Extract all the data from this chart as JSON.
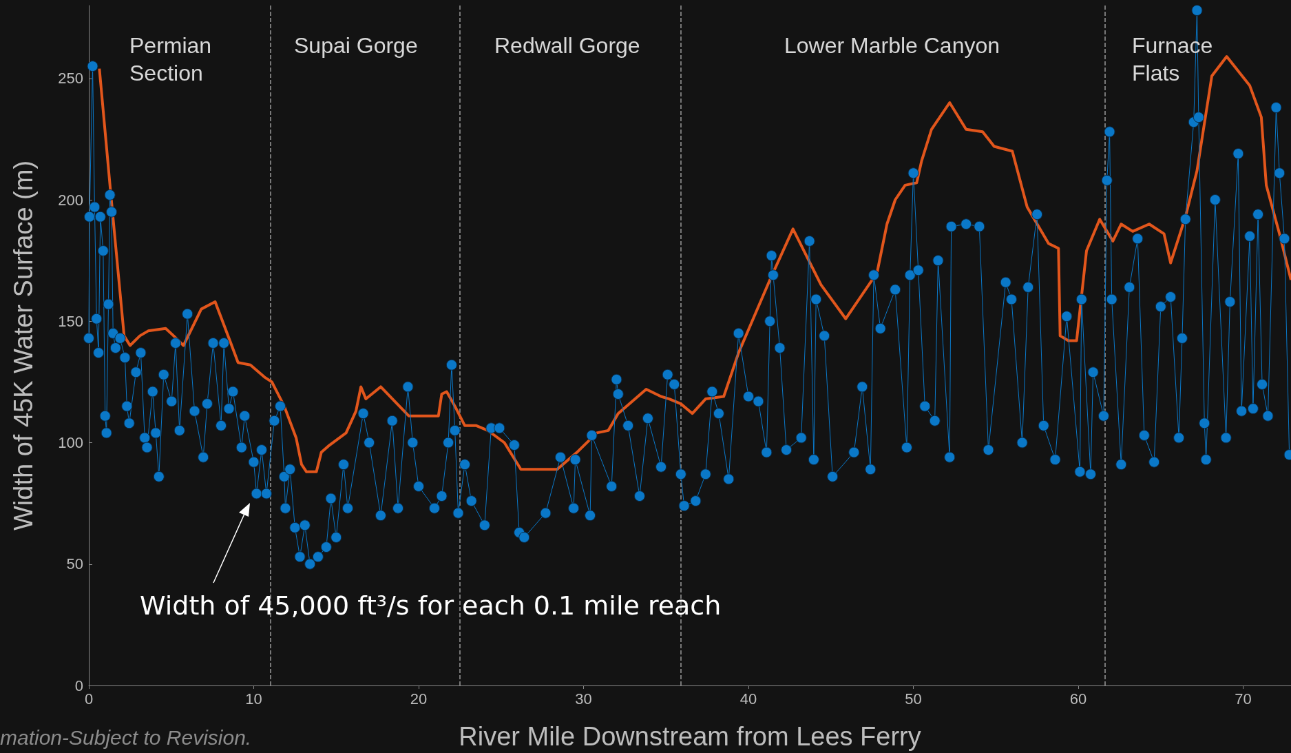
{
  "chart_data": {
    "type": "line",
    "xlabel": "River Mile Downstream from Lees Ferry",
    "ylabel": "Width of 45K Water Surface (m)",
    "xlim": [
      0,
      72.9
    ],
    "ylim": [
      0,
      280
    ],
    "xticks": [
      0,
      10,
      20,
      30,
      40,
      50,
      60,
      70
    ],
    "yticks": [
      0,
      50,
      100,
      150,
      200,
      250
    ],
    "grid": false,
    "series": [
      {
        "color": "#e2561c",
        "marker": "none",
        "x": [
          0.64,
          1.31,
          2.14,
          2.5,
          3.1,
          3.6,
          4.66,
          5.14,
          5.74,
          6.82,
          7.66,
          8.61,
          9.05,
          9.8,
          10.65,
          11.1,
          11.85,
          12.57,
          12.9,
          13.2,
          13.8,
          14.1,
          14.6,
          15.6,
          16.2,
          16.5,
          16.8,
          17.7,
          19.4,
          21.2,
          21.4,
          21.7,
          22.2,
          22.8,
          23.5,
          24.2,
          25.2,
          26.2,
          28.4,
          29.6,
          30.8,
          31.5,
          32.1,
          33.8,
          34.7,
          35.2,
          35.9,
          36.6,
          37.4,
          38.5,
          39.4,
          41.3,
          42.7,
          44.4,
          45.9,
          47.8,
          48.4,
          48.9,
          49.5,
          50.2,
          50.5,
          51.1,
          52.2,
          53.2,
          54.2,
          54.9,
          56,
          56.9,
          58.2,
          58.8,
          58.9,
          59.4,
          59.9,
          60.5,
          61.3,
          62.1,
          62.6,
          63.3,
          64.3,
          65.2,
          65.6,
          66.5,
          67.2,
          68.1,
          69,
          70.4,
          71.1,
          71.4,
          72.2,
          72.9
        ],
        "values": [
          254,
          204,
          144,
          140,
          144,
          146,
          147,
          144,
          140,
          155,
          158,
          141,
          133,
          132,
          127,
          125,
          115,
          102,
          91,
          88,
          88,
          96,
          99,
          104,
          113,
          123,
          118,
          123,
          111,
          111,
          120,
          121,
          115,
          107,
          107,
          105,
          100,
          89,
          89,
          96,
          104,
          105,
          112,
          122,
          119,
          118,
          116,
          112,
          118,
          119,
          137,
          167,
          188,
          165,
          151,
          170,
          190,
          200,
          206,
          207,
          216,
          229,
          240,
          229,
          228,
          222,
          220,
          197,
          182,
          180,
          144,
          142,
          142,
          179,
          192,
          183,
          190,
          187,
          190,
          186,
          174,
          193,
          212,
          251,
          259,
          247,
          234,
          206,
          186,
          167
        ]
      },
      {
        "color": "#0a78c8",
        "marker": "circle",
        "x": [
          0,
          0.04,
          0.23,
          0.35,
          0.47,
          0.59,
          0.7,
          0.87,
          0.99,
          1.07,
          1.19,
          1.28,
          1.38,
          1.47,
          1.62,
          1.9,
          2.19,
          2.31,
          2.45,
          2.86,
          3.15,
          3.39,
          3.53,
          3.87,
          4.06,
          4.25,
          4.54,
          5.02,
          5.26,
          5.5,
          5.98,
          6.41,
          6.94,
          7.18,
          7.54,
          8.02,
          8.19,
          8.5,
          8.74,
          9.26,
          9.45,
          10,
          10.17,
          10.48,
          10.77,
          11.25,
          11.61,
          11.85,
          11.92,
          12.2,
          12.5,
          12.8,
          13.1,
          13.41,
          13.9,
          14.4,
          14.68,
          15,
          15.45,
          15.7,
          16.64,
          17,
          17.7,
          18.4,
          18.75,
          19.35,
          19.64,
          20,
          20.96,
          21.4,
          21.8,
          22,
          22.2,
          22.4,
          22.8,
          23.2,
          24,
          24.4,
          24.9,
          25.8,
          26.1,
          26.4,
          27.7,
          28.6,
          29.4,
          29.5,
          30.4,
          30.5,
          31.7,
          32,
          32.1,
          32.7,
          33.4,
          33.9,
          34.7,
          35.1,
          35.5,
          35.9,
          36.1,
          36.8,
          37.4,
          37.8,
          38.2,
          38.8,
          39.4,
          40,
          40.6,
          41.1,
          41.3,
          41.4,
          41.5,
          41.9,
          42.3,
          43.2,
          43.7,
          43.96,
          44.1,
          44.6,
          45.1,
          46.4,
          46.9,
          47.4,
          47.6,
          48,
          48.9,
          49.6,
          49.8,
          50,
          50.3,
          50.7,
          51.3,
          51.5,
          52.2,
          52.3,
          53.2,
          54,
          54.55,
          55.6,
          55.95,
          56.6,
          56.96,
          57.5,
          57.9,
          58.6,
          59.3,
          60.1,
          60.2,
          60.75,
          60.9,
          61.54,
          61.74,
          61.9,
          62.03,
          62.6,
          63.1,
          63.6,
          64,
          64.6,
          65,
          65.6,
          66.1,
          66.3,
          66.5,
          67,
          67.2,
          67.3,
          67.65,
          67.75,
          68.3,
          68.96,
          69.2,
          69.7,
          69.9,
          70.4,
          70.6,
          70.9,
          71.15,
          71.5,
          72,
          72.2,
          72.5,
          72.8
        ],
        "values": [
          143,
          193,
          255,
          197,
          151,
          137,
          193,
          179,
          111,
          104,
          157,
          202,
          195,
          145,
          139,
          143,
          135,
          115,
          108,
          129,
          137,
          102,
          98,
          121,
          104,
          86,
          128,
          117,
          141,
          105,
          153,
          113,
          94,
          116,
          141,
          107,
          141,
          114,
          121,
          98,
          111,
          92,
          79,
          97,
          79,
          109,
          115,
          86,
          73,
          89,
          65,
          53,
          66,
          50,
          53,
          57,
          77,
          61,
          91,
          73,
          112,
          100,
          70,
          109,
          73,
          123,
          100,
          82,
          73,
          78,
          100,
          132,
          105,
          71,
          91,
          76,
          66,
          106,
          106,
          99,
          63,
          61,
          71,
          94,
          73,
          93,
          70,
          103,
          82,
          126,
          120,
          107,
          78,
          110,
          90,
          128,
          124,
          87,
          74,
          76,
          87,
          121,
          112,
          85,
          145,
          119,
          117,
          96,
          150,
          177,
          169,
          139,
          97,
          102,
          183,
          93,
          159,
          144,
          86,
          96,
          123,
          89,
          169,
          147,
          163,
          98,
          169,
          211,
          171,
          115,
          109,
          175,
          94,
          189,
          190,
          189,
          97,
          166,
          159,
          100,
          164,
          194,
          107,
          93,
          152,
          88,
          159,
          87,
          129,
          111,
          208,
          228,
          159,
          91,
          164,
          184,
          103,
          92,
          156,
          160,
          102,
          143,
          192,
          232,
          278,
          234,
          108,
          93,
          200,
          102,
          158,
          219,
          113,
          185,
          114,
          194,
          124,
          111,
          238,
          211,
          184,
          95
        ]
      }
    ],
    "ref_lines": [
      {
        "axis": "x",
        "value": 11,
        "line_style": "dashed",
        "color": "#9a9a9a"
      },
      {
        "axis": "x",
        "value": 22.5,
        "line_style": "dashed",
        "color": "#9a9a9a"
      },
      {
        "axis": "x",
        "value": 35.9,
        "line_style": "dashed",
        "color": "#9a9a9a"
      },
      {
        "axis": "x",
        "value": 61.6,
        "line_style": "dashed",
        "color": "#9a9a9a"
      }
    ],
    "annotations": [
      "Permian\nSection",
      "Supai Gorge",
      "Redwall Gorge",
      "Lower Marble Canyon",
      "Furnace\nFlats",
      "Width of 45,000 ft³/s for each 0.1 mile reach",
      "mation-Subject to Revision."
    ]
  }
}
